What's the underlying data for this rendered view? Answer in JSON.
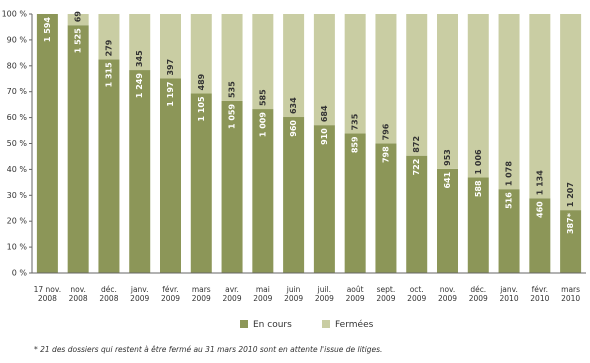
{
  "chart_data": {
    "type": "bar",
    "stacked": "percent",
    "categories": [
      "17 nov.\n2008",
      "nov.\n2008",
      "déc.\n2008",
      "janv.\n2009",
      "févr.\n2009",
      "mars\n2009",
      "avr.\n2009",
      "mai\n2009",
      "juin\n2009",
      "juil.\n2009",
      "août\n2009",
      "sept.\n2009",
      "oct.\n2009",
      "nov.\n2009",
      "déc.\n2009",
      "janv.\n2010",
      "févr.\n2010",
      "mars\n2010"
    ],
    "series": [
      {
        "name": "En cours",
        "color": "#8c9658",
        "values": [
          1594,
          1525,
          1315,
          1249,
          1197,
          1105,
          1059,
          1009,
          960,
          910,
          859,
          798,
          722,
          641,
          588,
          516,
          460,
          387
        ],
        "value_labels": [
          "1 594",
          "1 525",
          "1 315",
          "1 249",
          "1 197",
          "1 105",
          "1 059",
          "1 009",
          "960",
          "910",
          "859",
          "798",
          "722",
          "641",
          "588",
          "516",
          "460",
          "387*"
        ]
      },
      {
        "name": "Fermées",
        "color": "#c9cda3",
        "values": [
          0,
          69,
          279,
          345,
          397,
          489,
          535,
          585,
          634,
          684,
          735,
          796,
          872,
          953,
          1006,
          1078,
          1134,
          1207
        ],
        "value_labels": [
          null,
          "69",
          "279",
          "345",
          "397",
          "489",
          "535",
          "585",
          "634",
          "684",
          "735",
          "796",
          "872",
          "953",
          "1 006",
          "1 078",
          "1 134",
          "1 207"
        ]
      }
    ],
    "ylim": [
      0,
      100
    ],
    "yticks": [
      {
        "value": 0,
        "label": "0 %"
      },
      {
        "value": 10,
        "label": "10 %"
      },
      {
        "value": 20,
        "label": "20 %"
      },
      {
        "value": 30,
        "label": "30 %"
      },
      {
        "value": 40,
        "label": "40 %"
      },
      {
        "value": 50,
        "label": "50 %"
      },
      {
        "value": 60,
        "label": "60 %"
      },
      {
        "value": 70,
        "label": "70 %"
      },
      {
        "value": 80,
        "label": "80 %"
      },
      {
        "value": 90,
        "label": "90 %"
      },
      {
        "value": 100,
        "label": "100 %"
      }
    ],
    "grid": false,
    "legend": "bottom",
    "footnote": "* 21 des dossiers qui restent à être fermé au 31 mars 2010 sont en attente l'issue de litiges."
  }
}
